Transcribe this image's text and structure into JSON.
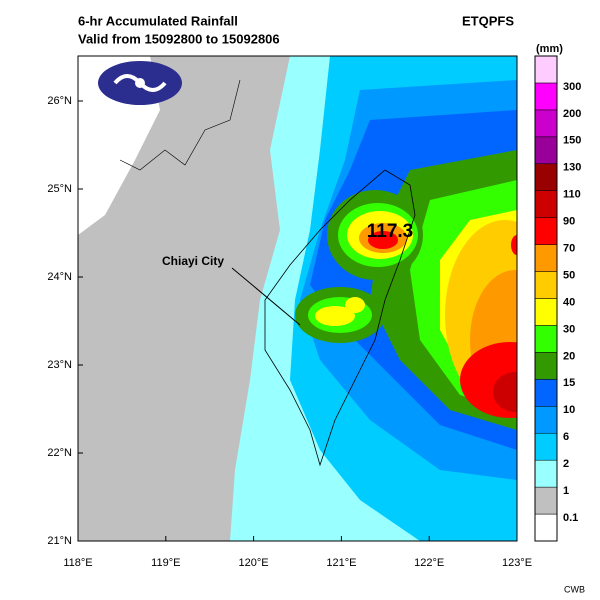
{
  "header": {
    "title": "6-hr Accumulated Rainfall",
    "valid": "Valid from 15092800 to 15092806",
    "product": "ETQPFS"
  },
  "map": {
    "xlabels": [
      "118°E",
      "119°E",
      "120°E",
      "121°E",
      "122°E",
      "123°E"
    ],
    "ylabels": [
      "21°N",
      "22°N",
      "23°N",
      "24°N",
      "25°N",
      "26°N"
    ],
    "annotation": "Chiayi City",
    "max_value": "117.3"
  },
  "legend": {
    "unit": "(mm)",
    "levels": [
      "0.1",
      "1",
      "2",
      "6",
      "10",
      "15",
      "20",
      "30",
      "40",
      "50",
      "70",
      "90",
      "110",
      "130",
      "150",
      "200",
      "300"
    ],
    "colors": [
      "#ffffff",
      "#c0c0c0",
      "#99ffff",
      "#00ccff",
      "#0099ff",
      "#0066ff",
      "#339900",
      "#33ff00",
      "#ffff00",
      "#ffcc00",
      "#ff9900",
      "#ff0000",
      "#cc0000",
      "#990000",
      "#990099",
      "#cc00cc",
      "#ff00ff",
      "#ffccff"
    ]
  },
  "footer": "CWB"
}
